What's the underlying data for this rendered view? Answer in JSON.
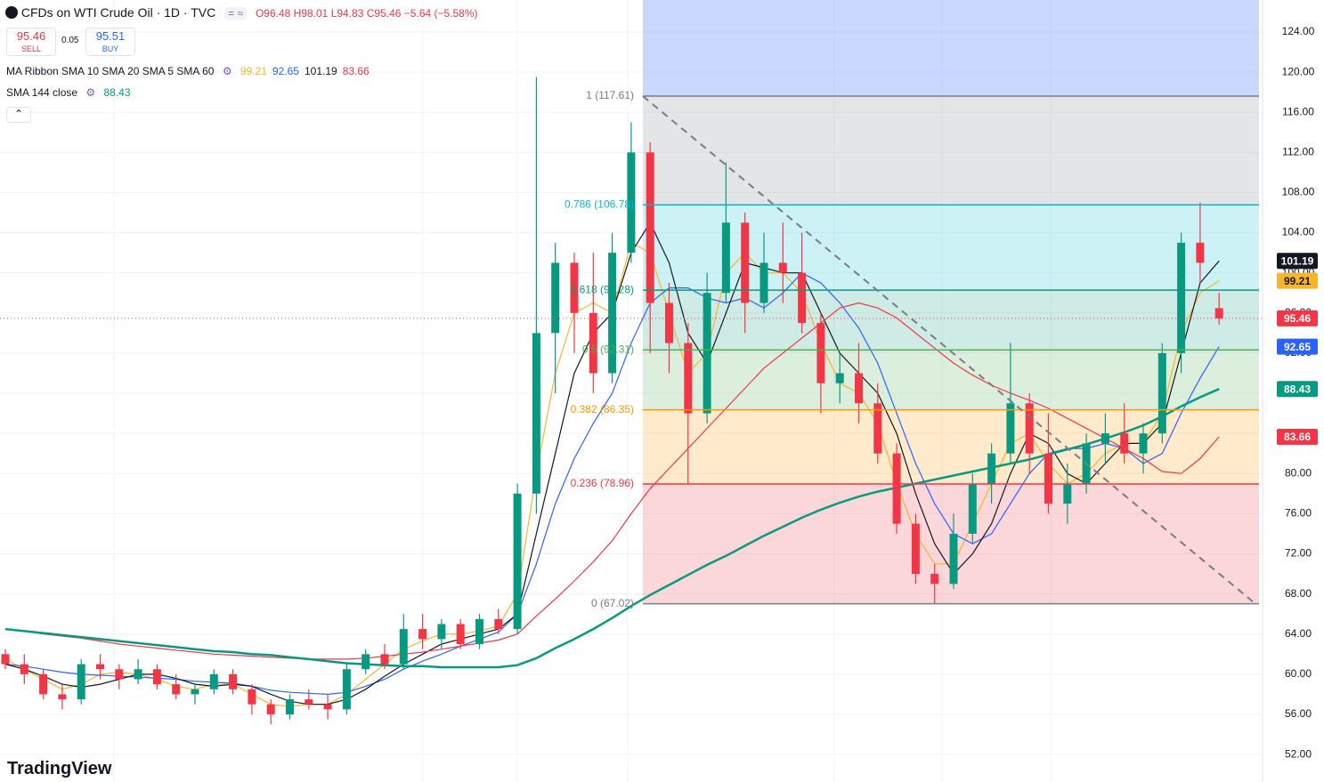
{
  "chart_data": {
    "type": "candlestick",
    "title": "CFDs on WTI Crude Oil · 1D · TVC",
    "header": {
      "open": "O96.48",
      "high": "H98.01",
      "low": "L94.83",
      "close": "C95.46",
      "change": "−5.64 (−5.58%)",
      "sell_price": "95.46",
      "sell_label": "SELL",
      "spread": "0.05",
      "buy_price": "95.51",
      "buy_label": "BUY"
    },
    "ribbon_label": "MA Ribbon SMA 10 SMA 20 SMA 5 SMA 60",
    "brand": "TradingView",
    "up_color": "#089981",
    "down_color": "#f23645",
    "ylim": [
      49.26,
      127.19
    ],
    "yticks": [
      {
        "value": 52,
        "label": "52.00"
      },
      {
        "value": 56,
        "label": "56.00"
      },
      {
        "value": 60,
        "label": "60.00"
      },
      {
        "value": 64,
        "label": "64.00"
      },
      {
        "value": 68,
        "label": "68.00"
      },
      {
        "value": 72,
        "label": "72.00"
      },
      {
        "value": 76,
        "label": "76.00"
      },
      {
        "value": 80,
        "label": "80.00"
      },
      {
        "value": 84,
        "label": "84.00"
      },
      {
        "value": 88,
        "label": "88.00"
      },
      {
        "value": 92,
        "label": "92.00"
      },
      {
        "value": 96,
        "label": "96.00"
      },
      {
        "value": 100,
        "label": "100.00"
      },
      {
        "value": 104,
        "label": "104.00"
      },
      {
        "value": 108,
        "label": "108.00"
      },
      {
        "value": 112,
        "label": "112.00"
      },
      {
        "value": 116,
        "label": "116.00"
      },
      {
        "value": 120,
        "label": "120.00"
      },
      {
        "value": 124,
        "label": "124.00"
      }
    ],
    "grid": true,
    "candles": {
      "open": [
        62,
        61,
        60,
        58,
        57.5,
        61,
        60.5,
        59.5,
        60.5,
        59,
        58,
        58.5,
        60,
        58.5,
        57,
        56,
        57.5,
        57,
        56.5,
        60.5,
        62,
        61,
        64.5,
        63.5,
        65,
        63,
        65.5,
        64.5,
        78,
        94,
        101,
        96,
        90,
        102,
        112,
        97,
        93,
        86,
        98,
        105,
        97,
        101,
        100,
        95,
        89,
        90,
        87,
        82,
        75,
        70,
        69,
        74,
        79,
        82,
        87,
        82,
        77,
        79,
        83,
        84,
        82,
        84,
        92,
        103,
        96.48
      ],
      "high": [
        62.5,
        62,
        60.5,
        59,
        61.5,
        62,
        61,
        61.5,
        61,
        60,
        59,
        60.5,
        60.5,
        59,
        57.5,
        58,
        58.5,
        58,
        61,
        62.5,
        63,
        66,
        66,
        65.5,
        65.5,
        66,
        66.5,
        79,
        119.5,
        103,
        102,
        102,
        104,
        115,
        113,
        99,
        95,
        100,
        111,
        106,
        104,
        105,
        104,
        96,
        92,
        93,
        89,
        83,
        76,
        71,
        76,
        80,
        83,
        93,
        88,
        86,
        81,
        84,
        86,
        87,
        85,
        93,
        104,
        107,
        98.01
      ],
      "low": [
        60.5,
        59,
        57.5,
        56.5,
        57,
        59.5,
        58.5,
        59,
        58.5,
        57.5,
        57,
        58,
        58,
        56,
        55,
        55.5,
        56.5,
        55.5,
        56,
        60,
        60.5,
        60.5,
        62.5,
        62.5,
        62.5,
        62.5,
        64,
        64,
        76,
        88,
        92,
        88,
        89,
        101,
        92,
        90,
        79,
        85,
        97,
        94,
        96,
        97,
        94,
        86,
        87,
        85,
        81,
        74,
        69,
        67,
        68.5,
        73,
        77,
        81,
        80,
        76,
        75,
        78,
        81,
        81,
        80,
        83,
        90,
        99,
        94.83
      ],
      "close": [
        61,
        60,
        58,
        57.5,
        61,
        60.5,
        59.5,
        60.5,
        59,
        58,
        58.5,
        60,
        58.5,
        57,
        56,
        57.5,
        57,
        56.5,
        60.5,
        62,
        61,
        64.5,
        63.5,
        65,
        63,
        65.5,
        64.5,
        78,
        94,
        101,
        96,
        90,
        102,
        112,
        97,
        93,
        86,
        98,
        105,
        97,
        101,
        100,
        95,
        89,
        90,
        87,
        82,
        75,
        70,
        69,
        74,
        79,
        82,
        87,
        82,
        77,
        79,
        83,
        84,
        82,
        84,
        92,
        103,
        101,
        95.46
      ]
    },
    "series": [
      {
        "color": "#f7b529",
        "values": [
          61.5,
          60.5,
          59.5,
          58.5,
          59,
          60,
          60.2,
          60,
          59.5,
          58.8,
          58.5,
          59,
          59,
          58,
          57,
          56.8,
          57,
          57,
          58,
          59.5,
          61,
          62.5,
          63.3,
          64,
          64,
          64.3,
          64.8,
          68,
          80,
          90,
          96,
          97,
          96,
          103,
          102,
          96,
          90,
          92,
          100,
          102,
          100,
          100,
          98,
          93,
          89,
          88,
          85,
          79,
          74,
          71,
          71,
          75,
          79,
          83,
          84,
          81,
          79,
          80,
          82,
          83,
          83,
          86,
          94,
          98,
          99.21
        ]
      },
      {
        "color": "#2962ff",
        "values": [
          61,
          60.8,
          60.5,
          60.2,
          60,
          59.9,
          59.8,
          59.7,
          59.6,
          59.5,
          59.3,
          59.2,
          59.1,
          58.8,
          58.4,
          58.2,
          58.1,
          58,
          58.2,
          58.8,
          59.5,
          60.5,
          61.3,
          62,
          62.8,
          63.5,
          64.2,
          66,
          71,
          77,
          81.5,
          85,
          88,
          93,
          97,
          98.5,
          98.5,
          97.5,
          97,
          97.5,
          96.5,
          98,
          100,
          99,
          97,
          94.5,
          91,
          86,
          81,
          77,
          74,
          73,
          74,
          77,
          80,
          82,
          82.5,
          82.5,
          83,
          82.5,
          81,
          82,
          86,
          89.5,
          92.65
        ]
      },
      {
        "color": "#131722",
        "values": [
          61,
          60.5,
          59.8,
          59,
          58.7,
          59,
          59.5,
          60,
          60,
          59.6,
          59,
          58.8,
          59,
          58.8,
          58,
          57.3,
          57,
          57,
          57.5,
          58.5,
          59.8,
          61,
          62,
          63,
          63.5,
          64,
          64.5,
          66,
          74,
          82,
          90,
          94,
          96,
          102,
          105,
          101,
          94,
          91,
          96,
          101,
          100.5,
          100,
          100,
          96,
          92,
          90,
          88,
          84,
          78,
          73,
          70,
          72,
          75,
          80,
          84,
          83,
          80,
          79,
          81,
          83,
          83,
          85,
          92,
          99,
          101.19
        ]
      },
      {
        "color": "#f23645",
        "values": [
          64.5,
          64.3,
          64,
          63.8,
          63.6,
          63.3,
          63,
          62.8,
          62.6,
          62.4,
          62.2,
          62,
          61.9,
          61.8,
          61.7,
          61.6,
          61.5,
          61.5,
          61.5,
          61.6,
          61.8,
          62,
          62.2,
          62.5,
          62.8,
          63.1,
          63.4,
          64,
          65.8,
          67.5,
          69.3,
          71.2,
          73.3,
          76,
          78.5,
          80.5,
          82.5,
          84.5,
          86.5,
          88.5,
          90.5,
          92,
          93.5,
          95,
          96.5,
          97,
          96.5,
          95.5,
          94,
          92.5,
          91,
          89.8,
          88.8,
          88,
          87.3,
          86.5,
          85.5,
          84.5,
          83.5,
          82.5,
          81.5,
          80.2,
          80,
          81.5,
          83.66
        ]
      },
      {
        "name": "SMA 144 close",
        "color": "#089981",
        "values": [
          64.5,
          64.3,
          64.1,
          63.9,
          63.7,
          63.5,
          63.3,
          63.1,
          62.9,
          62.7,
          62.5,
          62.3,
          62.2,
          62,
          61.9,
          61.7,
          61.5,
          61.3,
          61.1,
          61,
          60.9,
          60.8,
          60.8,
          60.7,
          60.7,
          60.7,
          60.7,
          60.9,
          61.6,
          62.6,
          63.5,
          64.5,
          65.6,
          66.8,
          67.9,
          68.9,
          69.9,
          70.9,
          71.8,
          72.8,
          73.8,
          74.7,
          75.6,
          76.4,
          77.1,
          77.7,
          78.2,
          78.6,
          79,
          79.4,
          79.8,
          80.2,
          80.6,
          81,
          81.4,
          81.9,
          82.4,
          82.9,
          83.5,
          84.1,
          84.8,
          85.7,
          86.7,
          87.6,
          88.43
        ]
      }
    ],
    "fib_top_color": "#2962ff",
    "fib": [
      {
        "label": "1 (117.61)",
        "value": 117.61,
        "color": "#787b86"
      },
      {
        "label": "0.786 (106.78)",
        "value": 106.78,
        "color": "#00bcd4"
      },
      {
        "label": "0.618 (98.28)",
        "value": 98.28,
        "color": "#089981"
      },
      {
        "label": "0.5 (92.31)",
        "value": 92.31,
        "color": "#4caf50"
      },
      {
        "label": "0.382 (86.35)",
        "value": 86.35,
        "color": "#ff9800"
      },
      {
        "label": "0.236 (78.96)",
        "value": 78.96,
        "color": "#f23645"
      },
      {
        "label": "0 (67.02)",
        "value": 67.02,
        "color": "#787b86"
      }
    ]
  }
}
